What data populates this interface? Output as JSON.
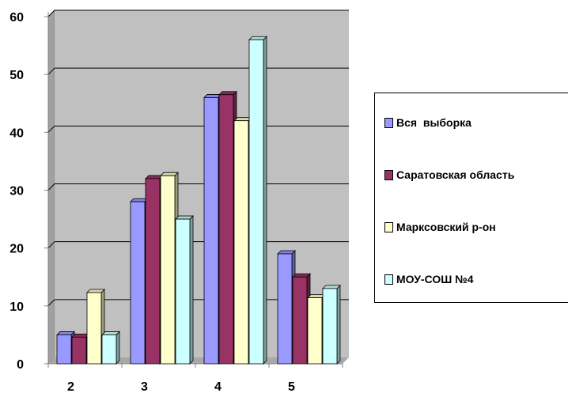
{
  "chart_data": {
    "type": "bar",
    "title": "",
    "xlabel": "",
    "ylabel": "",
    "categories": [
      "2",
      "3",
      "4",
      "5"
    ],
    "ylim": [
      0,
      60
    ],
    "yticks": [
      "0",
      "10",
      "20",
      "30",
      "40",
      "50",
      "60"
    ],
    "grid": true,
    "legend_position": "right",
    "series": [
      {
        "name": "Вся  выборка",
        "values": [
          5,
          28,
          46,
          19
        ],
        "color": "#9999ff"
      },
      {
        "name": "Саратовская область",
        "values": [
          4.6,
          32,
          46.5,
          15
        ],
        "color": "#993366"
      },
      {
        "name": "Марксовский р-он",
        "values": [
          12.3,
          32.5,
          42,
          11.4
        ],
        "color": "#ffffcc"
      },
      {
        "name": "МОУ-СОШ №4",
        "values": [
          5,
          25,
          56,
          13
        ],
        "color": "#ccffff"
      }
    ]
  }
}
